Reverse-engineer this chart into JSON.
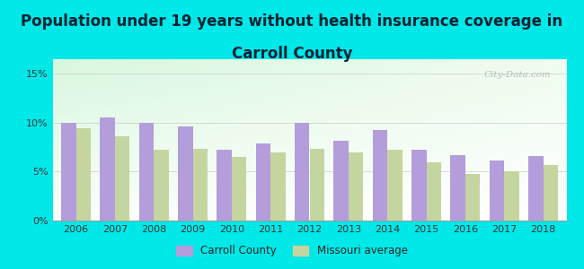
{
  "title_line1": "Population under 19 years without health insurance coverage in",
  "title_line2": "Carroll County",
  "years": [
    2006,
    2007,
    2008,
    2009,
    2010,
    2011,
    2012,
    2013,
    2014,
    2015,
    2016,
    2017,
    2018
  ],
  "carroll_county": [
    10.0,
    10.5,
    10.0,
    9.6,
    7.2,
    7.9,
    10.0,
    8.2,
    9.3,
    7.2,
    6.7,
    6.1,
    6.6
  ],
  "missouri_avg": [
    9.4,
    8.6,
    7.2,
    7.3,
    6.5,
    7.0,
    7.3,
    7.0,
    7.2,
    6.0,
    4.8,
    5.0,
    5.7
  ],
  "carroll_color": "#b39ddb",
  "missouri_color": "#c5d5a0",
  "background_outer": "#00e8e8",
  "ylabel_ticks": [
    0,
    5,
    10,
    15
  ],
  "ylabel_labels": [
    "0%",
    "5%",
    "10%",
    "15%"
  ],
  "ylim": [
    0,
    16.5
  ],
  "title_fontsize": 12,
  "watermark": "City-Data.com"
}
